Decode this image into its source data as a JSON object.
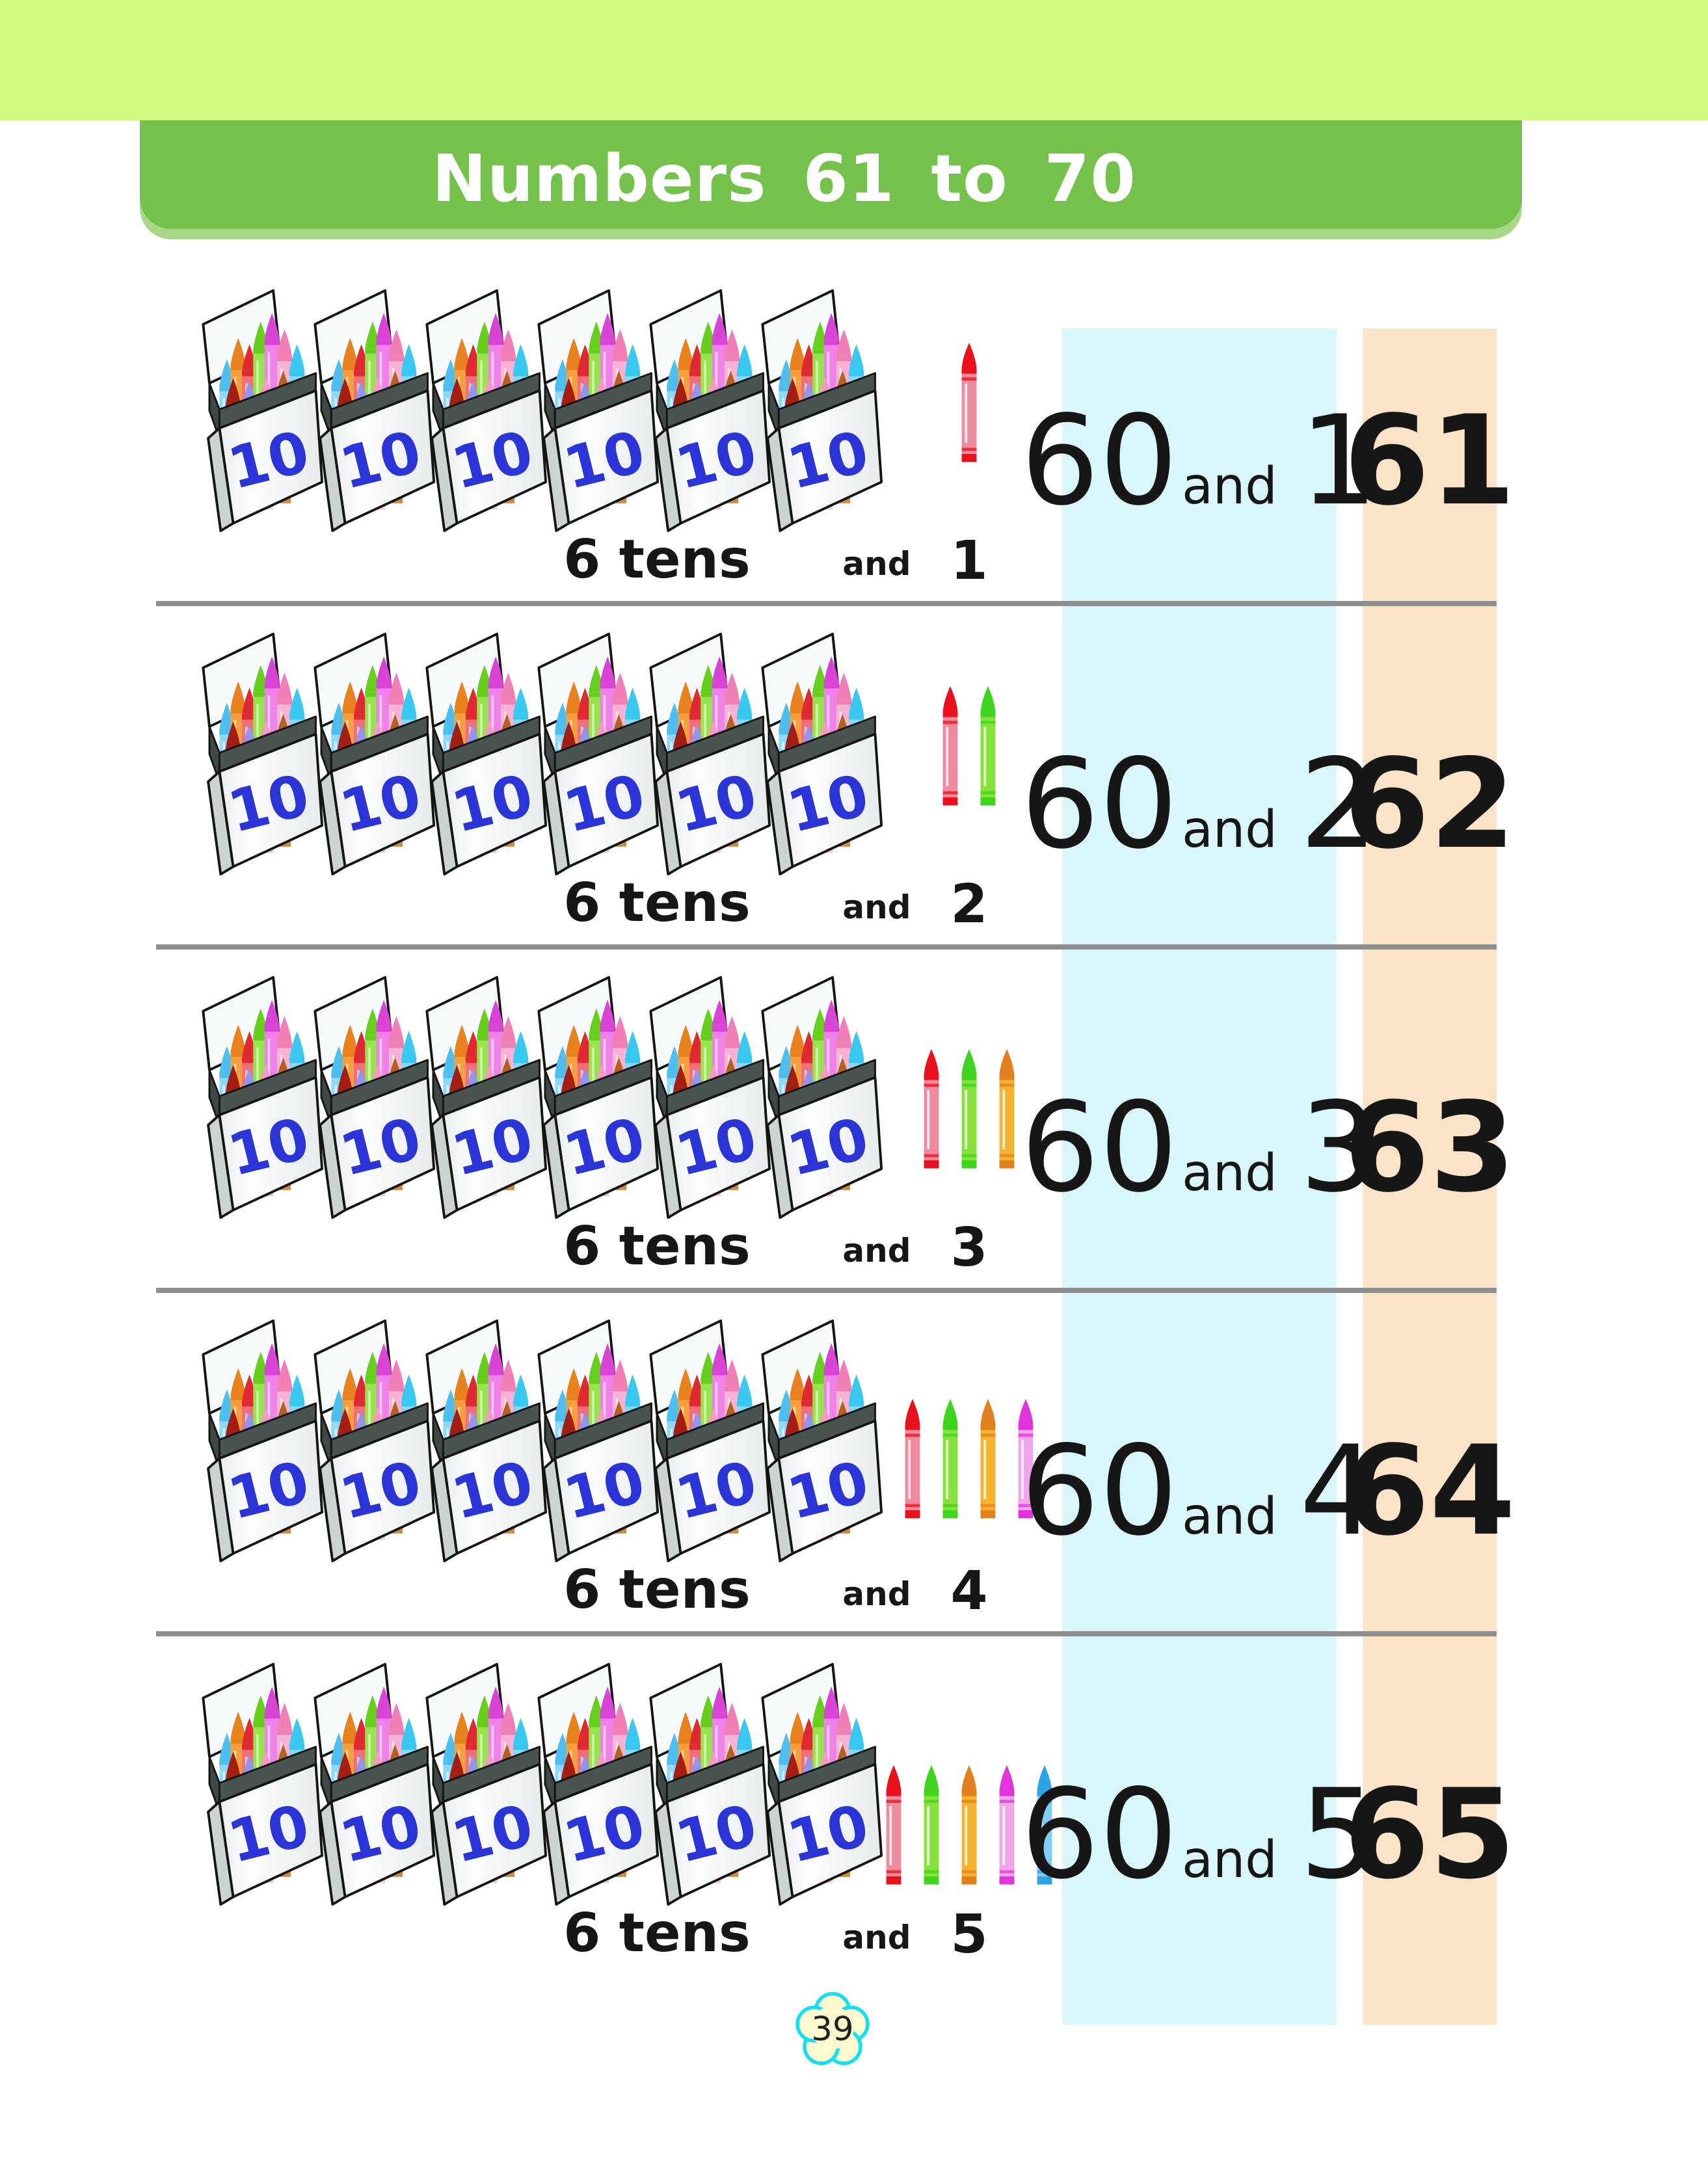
{
  "page": {
    "title": "Numbers 61 to 70",
    "page_number": "39"
  },
  "theme": {
    "band": "#cdf97e",
    "header_green": "#74c24c",
    "header_shadow": "#a9d787",
    "title_color": "#ffffff",
    "column_blue": "#d9f6fa",
    "column_orange": "#fbe3c7",
    "divider_gray": "#8e8e8e",
    "box_label_blue": "#2b34d6",
    "ink": "#161616",
    "badge_fill": "#fcfbcf",
    "badge_stroke": "#16dff2"
  },
  "box": {
    "label": "10",
    "per_row": 6,
    "crayon_colors": [
      {
        "tip": "#4fbef1",
        "body": "#8ed9f8"
      },
      {
        "tip": "#e8821f",
        "body": "#f5a03c"
      },
      {
        "tip": "#de2a33",
        "body": "#ef6f77"
      },
      {
        "tip": "#66cf1d",
        "body": "#96e54a"
      },
      {
        "tip": "#d944d6",
        "body": "#ef82e8"
      },
      {
        "tip": "#ef7fb4",
        "body": "#f8b3d4"
      },
      {
        "tip": "#38c8f0",
        "body": "#83dcf7"
      },
      {
        "tip": "#a31d12",
        "body": "#c44438"
      },
      {
        "tip": "#9395ea",
        "body": "#c0c1f6"
      },
      {
        "tip": "#f299c4",
        "body": "#f8c4dd"
      },
      {
        "tip": "#b0631f",
        "body": "#d08a42"
      }
    ]
  },
  "crayon_palette": {
    "red": {
      "tip": "#e8111c",
      "body": "#ee8b9e"
    },
    "green": {
      "tip": "#3fd41d",
      "body": "#86e13a"
    },
    "orange": {
      "tip": "#e2801d",
      "body": "#f6b32e"
    },
    "magenta": {
      "tip": "#e233dd",
      "body": "#f0a6ea"
    },
    "blue": {
      "tip": "#2ba3e8",
      "body": "#7fccf4"
    }
  },
  "rows": [
    {
      "tens_label": "6 tens",
      "and_label": "and",
      "ones_label": "1",
      "sum": {
        "tens": "60",
        "and": "and",
        "ones": "1"
      },
      "total": "61",
      "ones_crayons": [
        "red"
      ]
    },
    {
      "tens_label": "6 tens",
      "and_label": "and",
      "ones_label": "2",
      "sum": {
        "tens": "60",
        "and": "and",
        "ones": "2"
      },
      "total": "62",
      "ones_crayons": [
        "red",
        "green"
      ]
    },
    {
      "tens_label": "6 tens",
      "and_label": "and",
      "ones_label": "3",
      "sum": {
        "tens": "60",
        "and": "and",
        "ones": "3"
      },
      "total": "63",
      "ones_crayons": [
        "red",
        "green",
        "orange"
      ]
    },
    {
      "tens_label": "6 tens",
      "and_label": "and",
      "ones_label": "4",
      "sum": {
        "tens": "60",
        "and": "and",
        "ones": "4"
      },
      "total": "64",
      "ones_crayons": [
        "red",
        "green",
        "orange",
        "magenta"
      ]
    },
    {
      "tens_label": "6 tens",
      "and_label": "and",
      "ones_label": "5",
      "sum": {
        "tens": "60",
        "and": "and",
        "ones": "5"
      },
      "total": "65",
      "ones_crayons": [
        "red",
        "green",
        "orange",
        "magenta",
        "blue"
      ]
    }
  ]
}
